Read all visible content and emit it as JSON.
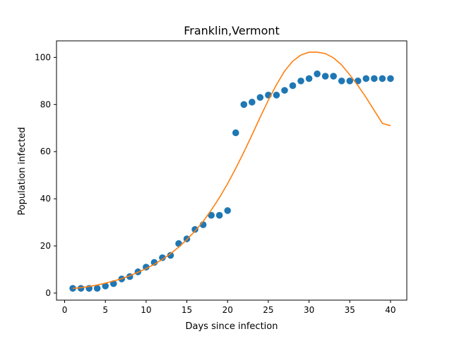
{
  "chart_data": {
    "type": "scatter",
    "title": "Franklin,Vermont",
    "xlabel": "Days since infection",
    "ylabel": "Population infected",
    "xlim": [
      -1,
      42
    ],
    "ylim": [
      -3,
      107
    ],
    "xticks": [
      0,
      5,
      10,
      15,
      20,
      25,
      30,
      35,
      40
    ],
    "yticks": [
      0,
      20,
      40,
      60,
      80,
      100
    ],
    "grid": false,
    "legend": "none",
    "series": [
      {
        "kind": "scatter",
        "color": "#1f77b4",
        "x": [
          1,
          2,
          3,
          4,
          5,
          6,
          7,
          8,
          9,
          10,
          11,
          12,
          13,
          14,
          15,
          16,
          17,
          18,
          19,
          20,
          21,
          22,
          23,
          24,
          25,
          26,
          27,
          28,
          29,
          30,
          31,
          32,
          33,
          34,
          35,
          36,
          37,
          38,
          39,
          40
        ],
        "y": [
          2,
          2,
          2,
          2,
          3,
          4,
          6,
          7,
          9,
          11,
          13,
          15,
          16,
          21,
          23,
          27,
          29,
          33,
          33,
          35,
          68,
          80,
          81,
          83,
          84,
          84,
          86,
          88,
          90,
          91,
          93,
          92,
          92,
          90,
          90,
          90,
          91,
          91,
          91,
          91
        ]
      },
      {
        "kind": "line",
        "color": "#ff7f0e",
        "x": [
          1,
          2,
          3,
          4,
          5,
          6,
          7,
          8,
          9,
          10,
          11,
          12,
          13,
          14,
          15,
          16,
          17,
          18,
          19,
          20,
          21,
          22,
          23,
          24,
          25,
          26,
          27,
          28,
          29,
          30,
          31,
          32,
          33,
          34,
          35,
          36,
          37,
          38,
          39,
          40
        ],
        "y": [
          2.0,
          2.3,
          2.8,
          3.4,
          4.2,
          5.1,
          6.1,
          7.4,
          8.8,
          10.4,
          12.2,
          14.3,
          16.7,
          19.5,
          22.7,
          26.3,
          30.4,
          35.2,
          40.5,
          46.4,
          52.9,
          59.8,
          67.1,
          74.6,
          81.8,
          88.4,
          94.2,
          98.4,
          101.0,
          102.2,
          102.2,
          101.6,
          99.8,
          96.8,
          92.6,
          88.0,
          83.0,
          77.5,
          72.0,
          71.0
        ]
      }
    ]
  }
}
